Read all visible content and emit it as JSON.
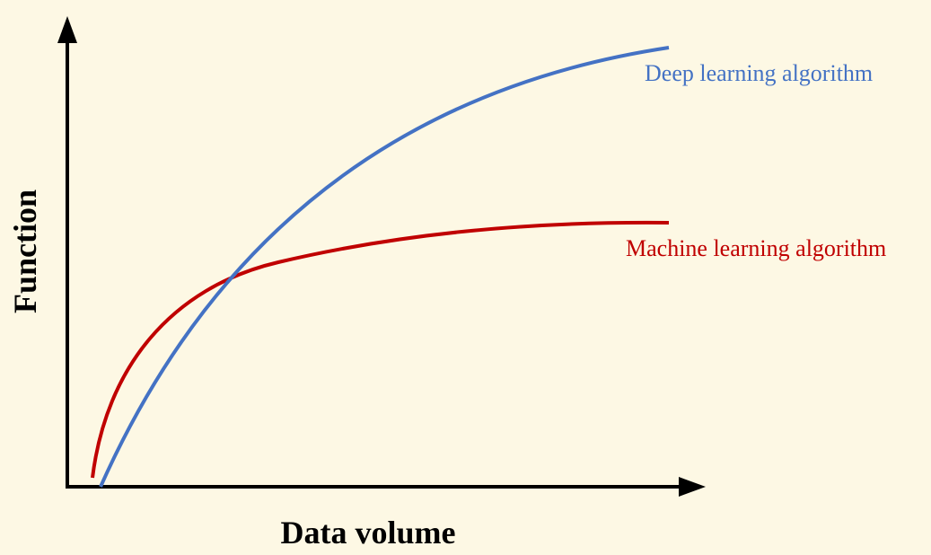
{
  "axes": {
    "x_label": "Data volume",
    "y_label": "Function"
  },
  "curves": [
    {
      "label": "Deep learning algorithm"
    },
    {
      "label": "Machine learning algorithm"
    }
  ]
}
